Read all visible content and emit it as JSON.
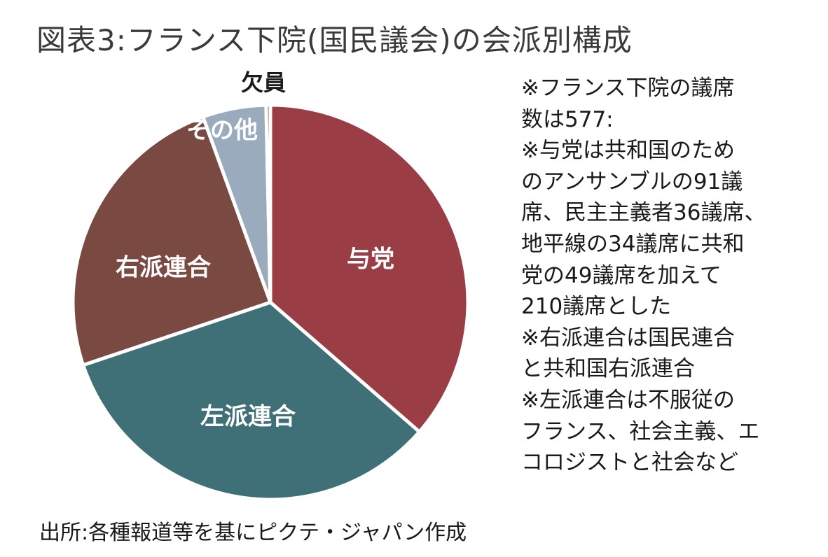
{
  "title": "図表3:フランス下院(国民議会)の会派別構成",
  "chart_data": {
    "type": "pie",
    "start": "12 o'clock",
    "direction": "clockwise",
    "slices": [
      {
        "name": "与党",
        "value": 210,
        "color": "#9b3d45",
        "label_color": "#ffffff"
      },
      {
        "name": "左派連合",
        "value": 193,
        "color": "#3f6f77",
        "label_color": "#ffffff"
      },
      {
        "name": "右派連合",
        "value": 142,
        "color": "#7a4942",
        "label_color": "#ffffff"
      },
      {
        "name": "その他",
        "value": 30,
        "color": "#9aabbe",
        "label_color": "#ffffff"
      },
      {
        "name": "欠員",
        "value": 2,
        "color": "#c0582d",
        "label_color": "#1a1a1a"
      }
    ],
    "total": 577
  },
  "notes": [
    "※フランス下院の議席",
    "数は577:",
    "※与党は共和国のため",
    "のアンサンブルの91議",
    "席、民主主義者36議席、",
    "地平線の34議席に共和",
    "党の49議席を加えて",
    "210議席とした",
    "※右派連合は国民連合",
    "と共和国右派連合",
    "※左派連合は不服従の",
    "フランス、社会主義、エ",
    "コロジストと社会など"
  ],
  "source": "出所:各種報道等を基にピクテ・ジャパン作成"
}
